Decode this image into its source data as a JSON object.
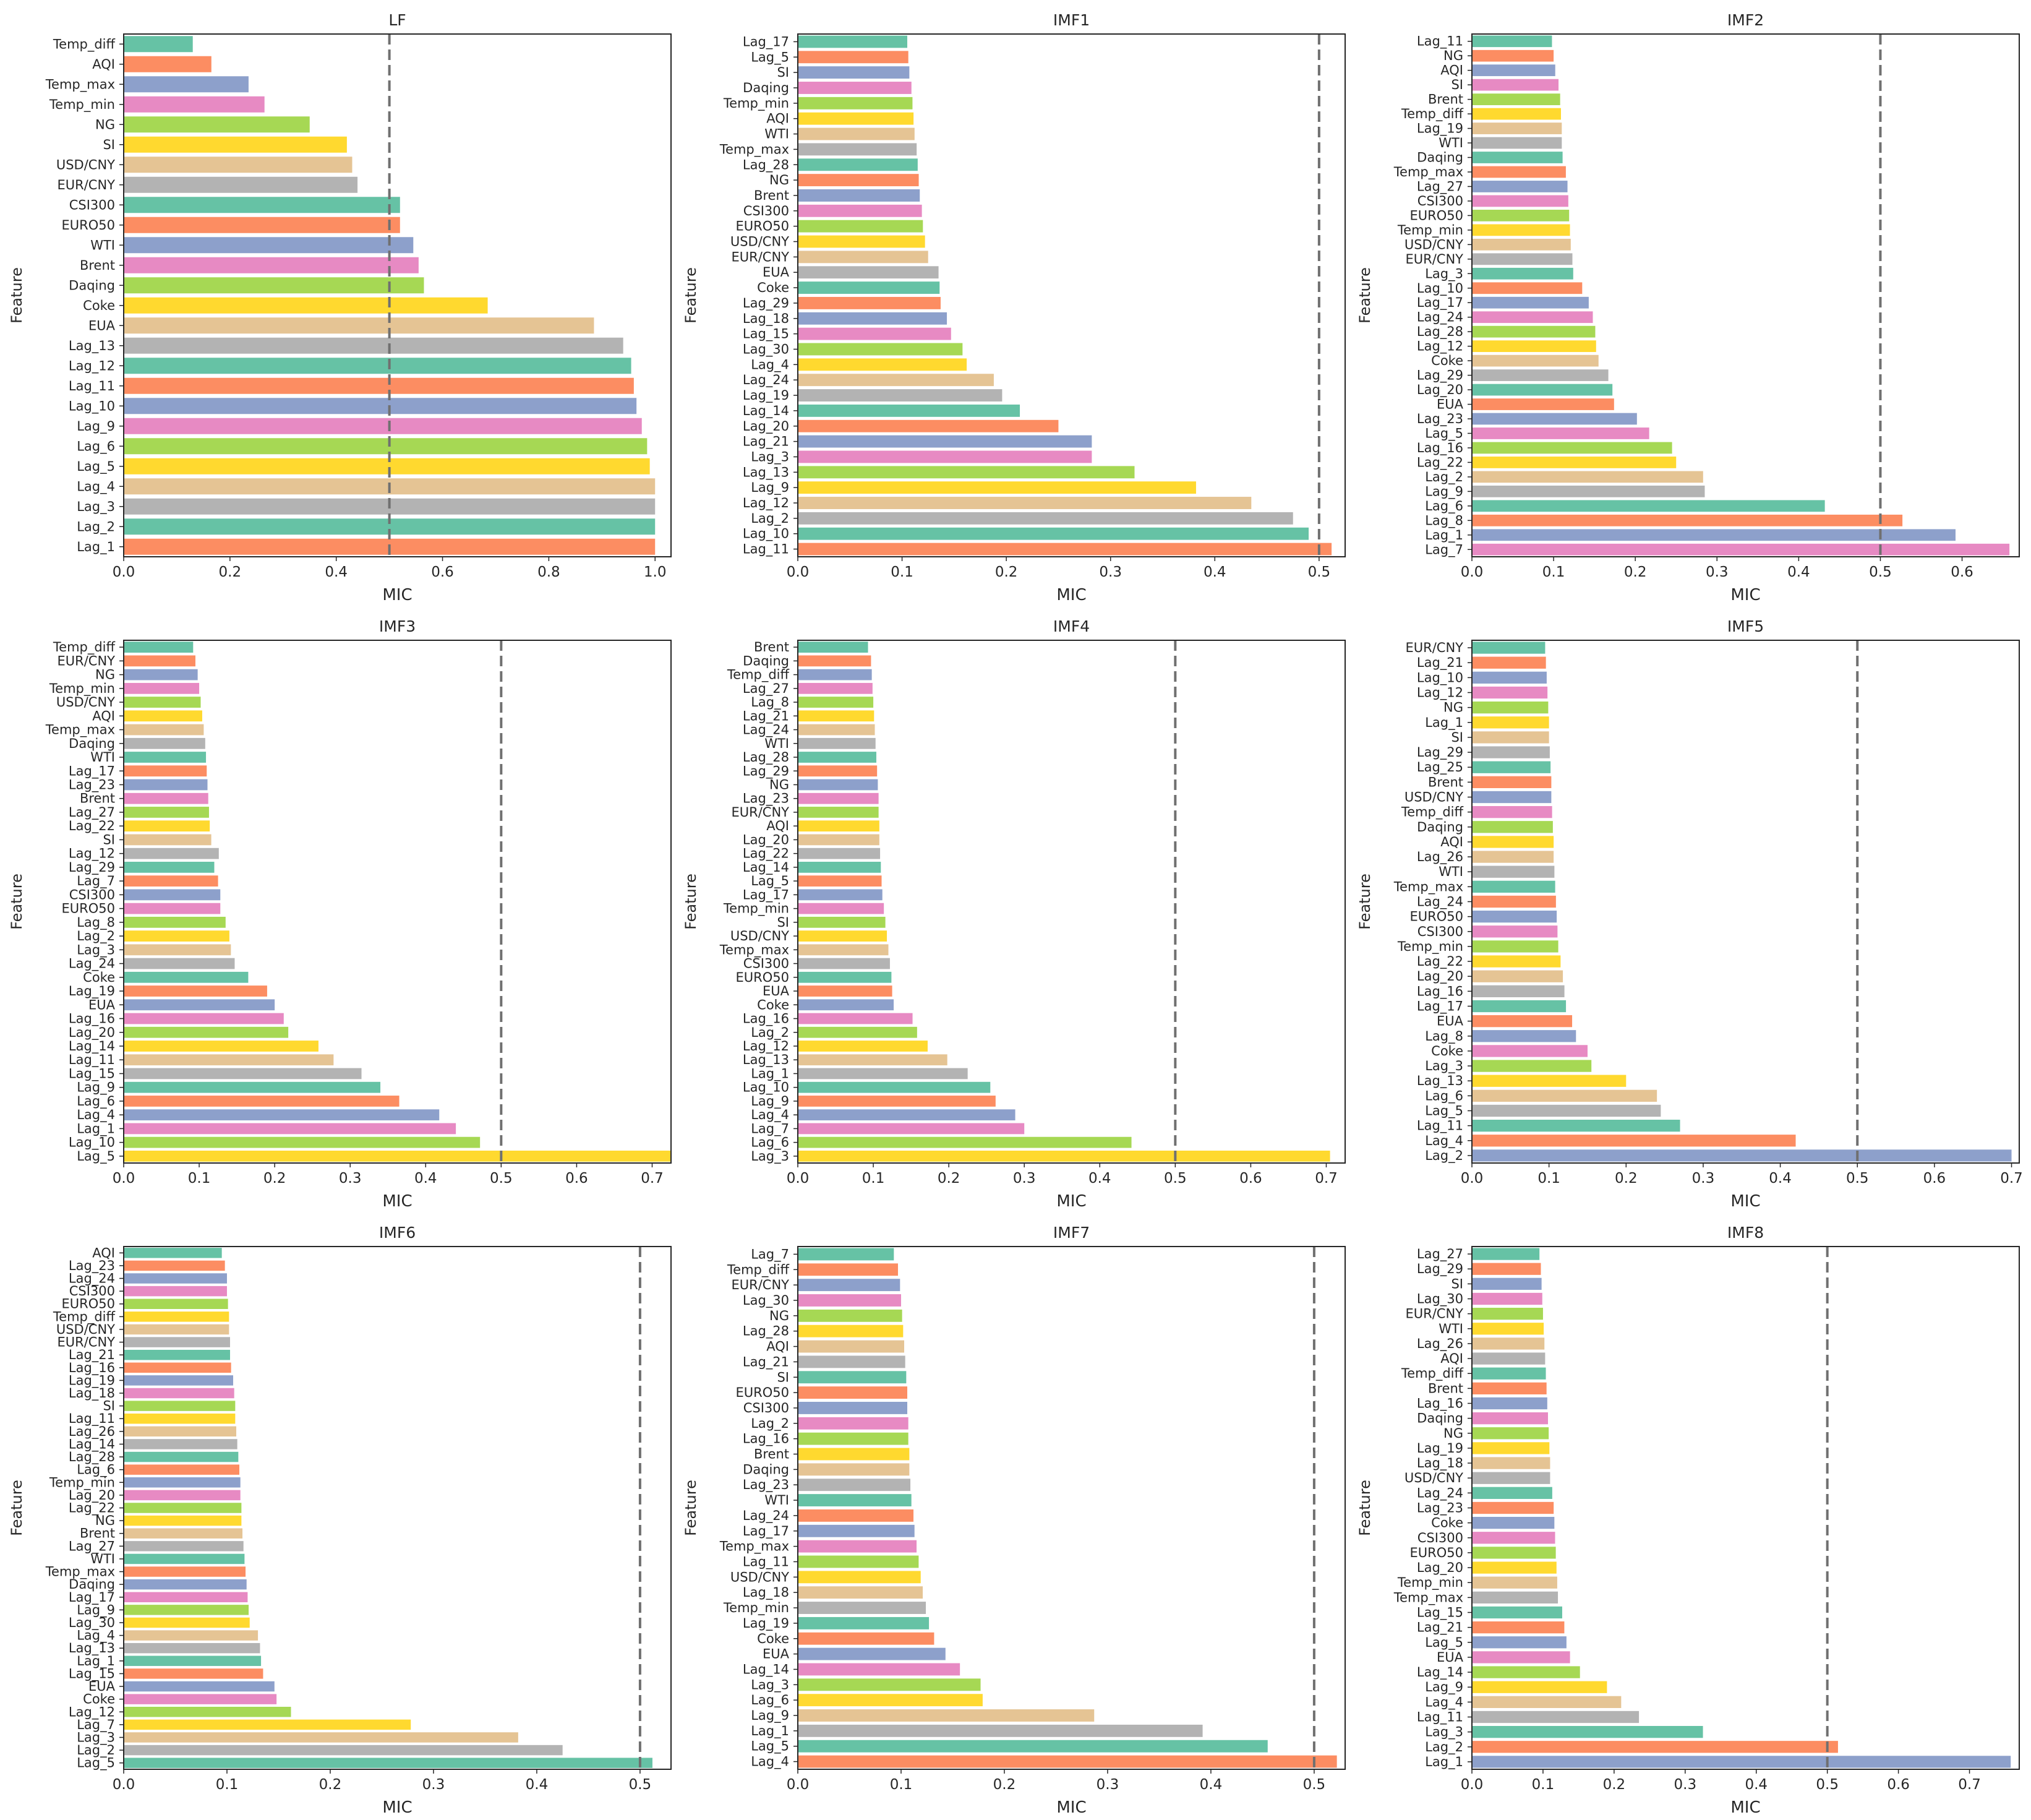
{
  "figure": {
    "palette": [
      "#66c2a5",
      "#fc8d62",
      "#8da0cb",
      "#e78ac3",
      "#a6d854",
      "#ffd92f",
      "#e5c494",
      "#b3b3b3"
    ],
    "axis_color": "#262626",
    "threshold_color": "#707070"
  },
  "chart_data": [
    {
      "type": "bar",
      "orientation": "horizontal",
      "title": "LF",
      "xlabel": "MIC",
      "ylabel": "Feature",
      "xlim": [
        0,
        1.03
      ],
      "xticks": [
        "0.0",
        "0.2",
        "0.4",
        "0.6",
        "0.8",
        "1.0"
      ],
      "threshold": 0.5,
      "categories": [
        "Temp_diff",
        "AQI",
        "Temp_max",
        "Temp_min",
        "NG",
        "SI",
        "USD/CNY",
        "EUR/CNY",
        "CSI300",
        "EURO50",
        "WTI",
        "Brent",
        "Daqing",
        "Coke",
        "EUA",
        "Lag_13",
        "Lag_12",
        "Lag_11",
        "Lag_10",
        "Lag_9",
        "Lag_6",
        "Lag_5",
        "Lag_4",
        "Lag_3",
        "Lag_2",
        "Lag_1"
      ],
      "values": [
        0.13,
        0.165,
        0.235,
        0.265,
        0.35,
        0.42,
        0.43,
        0.44,
        0.52,
        0.52,
        0.545,
        0.555,
        0.565,
        0.685,
        0.885,
        0.94,
        0.955,
        0.96,
        0.965,
        0.975,
        0.985,
        0.99,
        1.0,
        1.0,
        1.0,
        1.0
      ]
    },
    {
      "type": "bar",
      "orientation": "horizontal",
      "title": "IMF1",
      "xlabel": "MIC",
      "ylabel": "Feature",
      "xlim": [
        0,
        0.525
      ],
      "xticks": [
        "0.0",
        "0.1",
        "0.2",
        "0.3",
        "0.4",
        "0.5"
      ],
      "threshold": 0.5,
      "categories": [
        "Lag_17",
        "Lag_5",
        "SI",
        "Daqing",
        "Temp_min",
        "AQI",
        "WTI",
        "Temp_max",
        "Lag_28",
        "NG",
        "Brent",
        "CSI300",
        "EURO50",
        "USD/CNY",
        "EUR/CNY",
        "EUA",
        "Coke",
        "Lag_29",
        "Lag_18",
        "Lag_15",
        "Lag_30",
        "Lag_4",
        "Lag_24",
        "Lag_19",
        "Lag_14",
        "Lag_20",
        "Lag_21",
        "Lag_3",
        "Lag_13",
        "Lag_9",
        "Lag_12",
        "Lag_2",
        "Lag_10",
        "Lag_11"
      ],
      "values": [
        0.105,
        0.106,
        0.107,
        0.109,
        0.11,
        0.111,
        0.112,
        0.114,
        0.115,
        0.116,
        0.117,
        0.119,
        0.12,
        0.122,
        0.125,
        0.135,
        0.136,
        0.137,
        0.143,
        0.147,
        0.158,
        0.162,
        0.188,
        0.196,
        0.213,
        0.25,
        0.282,
        0.282,
        0.323,
        0.382,
        0.435,
        0.475,
        0.49,
        0.512
      ]
    },
    {
      "type": "bar",
      "orientation": "horizontal",
      "title": "IMF2",
      "xlabel": "MIC",
      "ylabel": "Feature",
      "xlim": [
        0,
        0.67
      ],
      "xticks": [
        "0.0",
        "0.1",
        "0.2",
        "0.3",
        "0.4",
        "0.5",
        "0.6"
      ],
      "threshold": 0.5,
      "categories": [
        "Lag_11",
        "NG",
        "AQI",
        "SI",
        "Brent",
        "Temp_diff",
        "Lag_19",
        "WTI",
        "Daqing",
        "Temp_max",
        "Lag_27",
        "CSI300",
        "EURO50",
        "Temp_min",
        "USD/CNY",
        "EUR/CNY",
        "Lag_3",
        "Lag_10",
        "Lag_17",
        "Lag_24",
        "Lag_28",
        "Lag_12",
        "Coke",
        "Lag_29",
        "Lag_20",
        "EUA",
        "Lag_23",
        "Lag_5",
        "Lag_16",
        "Lag_22",
        "Lag_2",
        "Lag_9",
        "Lag_6",
        "Lag_8",
        "Lag_1",
        "Lag_7"
      ],
      "values": [
        0.098,
        0.1,
        0.102,
        0.106,
        0.108,
        0.109,
        0.11,
        0.11,
        0.111,
        0.115,
        0.117,
        0.118,
        0.119,
        0.12,
        0.121,
        0.123,
        0.124,
        0.135,
        0.143,
        0.148,
        0.151,
        0.152,
        0.155,
        0.167,
        0.172,
        0.174,
        0.202,
        0.217,
        0.245,
        0.25,
        0.283,
        0.285,
        0.432,
        0.527,
        0.592,
        0.658
      ]
    },
    {
      "type": "bar",
      "orientation": "horizontal",
      "title": "IMF3",
      "xlabel": "MIC",
      "ylabel": "Feature",
      "xlim": [
        0,
        0.725
      ],
      "xticks": [
        "0.0",
        "0.1",
        "0.2",
        "0.3",
        "0.4",
        "0.5",
        "0.6",
        "0.7"
      ],
      "threshold": 0.5,
      "categories": [
        "Temp_diff",
        "EUR/CNY",
        "NG",
        "Temp_min",
        "USD/CNY",
        "AQI",
        "Temp_max",
        "Daqing",
        "WTI",
        "Lag_17",
        "Lag_23",
        "Brent",
        "Lag_27",
        "Lag_22",
        "SI",
        "Lag_12",
        "Lag_29",
        "Lag_7",
        "CSI300",
        "EURO50",
        "Lag_8",
        "Lag_2",
        "Lag_3",
        "Lag_24",
        "Coke",
        "Lag_19",
        "EUA",
        "Lag_16",
        "Lag_20",
        "Lag_14",
        "Lag_11",
        "Lag_15",
        "Lag_9",
        "Lag_6",
        "Lag_4",
        "Lag_1",
        "Lag_10",
        "Lag_5"
      ],
      "values": [
        0.092,
        0.095,
        0.098,
        0.1,
        0.102,
        0.104,
        0.106,
        0.108,
        0.109,
        0.11,
        0.111,
        0.112,
        0.113,
        0.114,
        0.116,
        0.126,
        0.12,
        0.125,
        0.128,
        0.128,
        0.135,
        0.14,
        0.142,
        0.147,
        0.165,
        0.19,
        0.2,
        0.212,
        0.218,
        0.258,
        0.278,
        0.315,
        0.34,
        0.365,
        0.418,
        0.44,
        0.472,
        0.725
      ]
    },
    {
      "type": "bar",
      "orientation": "horizontal",
      "title": "IMF4",
      "xlabel": "MIC",
      "ylabel": "Feature",
      "xlim": [
        0,
        0.725
      ],
      "xticks": [
        "0.0",
        "0.1",
        "0.2",
        "0.3",
        "0.4",
        "0.5",
        "0.6",
        "0.7"
      ],
      "threshold": 0.5,
      "categories": [
        "Brent",
        "Daqing",
        "Temp_diff",
        "Lag_27",
        "Lag_8",
        "Lag_21",
        "Lag_24",
        "WTI",
        "Lag_28",
        "Lag_29",
        "NG",
        "Lag_23",
        "EUR/CNY",
        "AQI",
        "Lag_20",
        "Lag_22",
        "Lag_14",
        "Lag_5",
        "Lag_17",
        "Temp_min",
        "SI",
        "USD/CNY",
        "Temp_max",
        "CSI300",
        "EURO50",
        "EUA",
        "Coke",
        "Lag_16",
        "Lag_2",
        "Lag_12",
        "Lag_13",
        "Lag_1",
        "Lag_10",
        "Lag_9",
        "Lag_4",
        "Lag_7",
        "Lag_6",
        "Lag_3"
      ],
      "values": [
        0.093,
        0.097,
        0.098,
        0.099,
        0.1,
        0.101,
        0.102,
        0.103,
        0.104,
        0.105,
        0.106,
        0.107,
        0.107,
        0.108,
        0.108,
        0.109,
        0.11,
        0.111,
        0.112,
        0.114,
        0.116,
        0.118,
        0.12,
        0.122,
        0.124,
        0.125,
        0.127,
        0.152,
        0.158,
        0.172,
        0.198,
        0.225,
        0.255,
        0.262,
        0.288,
        0.3,
        0.442,
        0.705
      ]
    },
    {
      "type": "bar",
      "orientation": "horizontal",
      "title": "IMF5",
      "xlabel": "MIC",
      "ylabel": "Feature",
      "xlim": [
        0,
        0.71
      ],
      "xticks": [
        "0.0",
        "0.1",
        "0.2",
        "0.3",
        "0.4",
        "0.5",
        "0.6",
        "0.7"
      ],
      "threshold": 0.5,
      "categories": [
        "EUR/CNY",
        "Lag_21",
        "Lag_10",
        "Lag_12",
        "NG",
        "Lag_1",
        "SI",
        "Lag_29",
        "Lag_25",
        "Brent",
        "USD/CNY",
        "Temp_diff",
        "Daqing",
        "AQI",
        "Lag_26",
        "WTI",
        "Temp_max",
        "Lag_24",
        "EURO50",
        "CSI300",
        "Temp_min",
        "Lag_22",
        "Lag_20",
        "Lag_16",
        "Lag_17",
        "EUA",
        "Lag_8",
        "Coke",
        "Lag_3",
        "Lag_13",
        "Lag_6",
        "Lag_5",
        "Lag_11",
        "Lag_4",
        "Lag_2"
      ],
      "values": [
        0.095,
        0.096,
        0.097,
        0.098,
        0.099,
        0.1,
        0.1,
        0.101,
        0.102,
        0.103,
        0.103,
        0.104,
        0.105,
        0.106,
        0.106,
        0.107,
        0.108,
        0.109,
        0.11,
        0.111,
        0.112,
        0.115,
        0.118,
        0.12,
        0.122,
        0.13,
        0.135,
        0.15,
        0.155,
        0.2,
        0.24,
        0.245,
        0.27,
        0.42,
        0.7
      ]
    },
    {
      "type": "bar",
      "orientation": "horizontal",
      "title": "IMF6",
      "xlabel": "MIC",
      "ylabel": "Feature",
      "xlim": [
        0,
        0.53
      ],
      "xticks": [
        "0.0",
        "0.1",
        "0.2",
        "0.3",
        "0.4",
        "0.5"
      ],
      "threshold": 0.5,
      "categories": [
        "AQI",
        "Lag_23",
        "Lag_24",
        "CSI300",
        "EURO50",
        "Temp_diff",
        "USD/CNY",
        "EUR/CNY",
        "Lag_21",
        "Lag_16",
        "Lag_19",
        "Lag_18",
        "SI",
        "Lag_11",
        "Lag_26",
        "Lag_14",
        "Lag_28",
        "Lag_6",
        "Temp_min",
        "Lag_20",
        "Lag_22",
        "NG",
        "Brent",
        "Lag_27",
        "WTI",
        "Temp_max",
        "Daqing",
        "Lag_17",
        "Lag_9",
        "Lag_30",
        "Lag_4",
        "Lag_13",
        "Lag_1",
        "Lag_15",
        "EUA",
        "Coke",
        "Lag_12",
        "Lag_7",
        "Lag_3",
        "Lag_2",
        "Lag_5"
      ],
      "values": [
        0.095,
        0.098,
        0.1,
        0.1,
        0.101,
        0.102,
        0.102,
        0.103,
        0.103,
        0.104,
        0.106,
        0.107,
        0.108,
        0.108,
        0.109,
        0.11,
        0.111,
        0.112,
        0.113,
        0.113,
        0.114,
        0.114,
        0.115,
        0.116,
        0.117,
        0.118,
        0.119,
        0.12,
        0.121,
        0.122,
        0.13,
        0.132,
        0.133,
        0.135,
        0.146,
        0.148,
        0.162,
        0.278,
        0.382,
        0.425,
        0.512
      ]
    },
    {
      "type": "bar",
      "orientation": "horizontal",
      "title": "IMF7",
      "xlabel": "MIC",
      "ylabel": "Feature",
      "xlim": [
        0,
        0.53
      ],
      "xticks": [
        "0.0",
        "0.1",
        "0.2",
        "0.3",
        "0.4",
        "0.5"
      ],
      "threshold": 0.5,
      "categories": [
        "Lag_7",
        "Temp_diff",
        "EUR/CNY",
        "Lag_30",
        "NG",
        "Lag_28",
        "AQI",
        "Lag_21",
        "SI",
        "EURO50",
        "CSI300",
        "Lag_2",
        "Lag_16",
        "Brent",
        "Daqing",
        "Lag_23",
        "WTI",
        "Lag_24",
        "Lag_17",
        "Temp_max",
        "Lag_11",
        "USD/CNY",
        "Lag_18",
        "Temp_min",
        "Lag_19",
        "Coke",
        "EUA",
        "Lag_14",
        "Lag_3",
        "Lag_6",
        "Lag_9",
        "Lag_1",
        "Lag_5",
        "Lag_4"
      ],
      "values": [
        0.093,
        0.097,
        0.099,
        0.1,
        0.101,
        0.102,
        0.103,
        0.104,
        0.105,
        0.106,
        0.106,
        0.107,
        0.107,
        0.108,
        0.108,
        0.109,
        0.11,
        0.112,
        0.113,
        0.115,
        0.117,
        0.119,
        0.121,
        0.124,
        0.127,
        0.132,
        0.143,
        0.157,
        0.177,
        0.179,
        0.287,
        0.392,
        0.455,
        0.522
      ]
    },
    {
      "type": "bar",
      "orientation": "horizontal",
      "title": "IMF8",
      "xlabel": "MIC",
      "ylabel": "Feature",
      "xlim": [
        0,
        0.77
      ],
      "xticks": [
        "0.0",
        "0.1",
        "0.2",
        "0.3",
        "0.4",
        "0.5",
        "0.6",
        "0.7"
      ],
      "threshold": 0.5,
      "categories": [
        "Lag_27",
        "Lag_29",
        "SI",
        "Lag_30",
        "EUR/CNY",
        "WTI",
        "Lag_26",
        "AQI",
        "Temp_diff",
        "Brent",
        "Lag_16",
        "Daqing",
        "NG",
        "Lag_19",
        "Lag_18",
        "USD/CNY",
        "Lag_24",
        "Lag_23",
        "Coke",
        "CSI300",
        "EURO50",
        "Lag_20",
        "Temp_min",
        "Temp_max",
        "Lag_15",
        "Lag_21",
        "Lag_5",
        "EUA",
        "Lag_14",
        "Lag_9",
        "Lag_4",
        "Lag_11",
        "Lag_3",
        "Lag_2",
        "Lag_1"
      ],
      "values": [
        0.095,
        0.097,
        0.098,
        0.099,
        0.1,
        0.101,
        0.102,
        0.103,
        0.104,
        0.105,
        0.106,
        0.107,
        0.108,
        0.109,
        0.11,
        0.11,
        0.113,
        0.115,
        0.116,
        0.117,
        0.118,
        0.119,
        0.12,
        0.121,
        0.127,
        0.13,
        0.133,
        0.138,
        0.152,
        0.19,
        0.21,
        0.235,
        0.325,
        0.515,
        0.758
      ]
    }
  ]
}
